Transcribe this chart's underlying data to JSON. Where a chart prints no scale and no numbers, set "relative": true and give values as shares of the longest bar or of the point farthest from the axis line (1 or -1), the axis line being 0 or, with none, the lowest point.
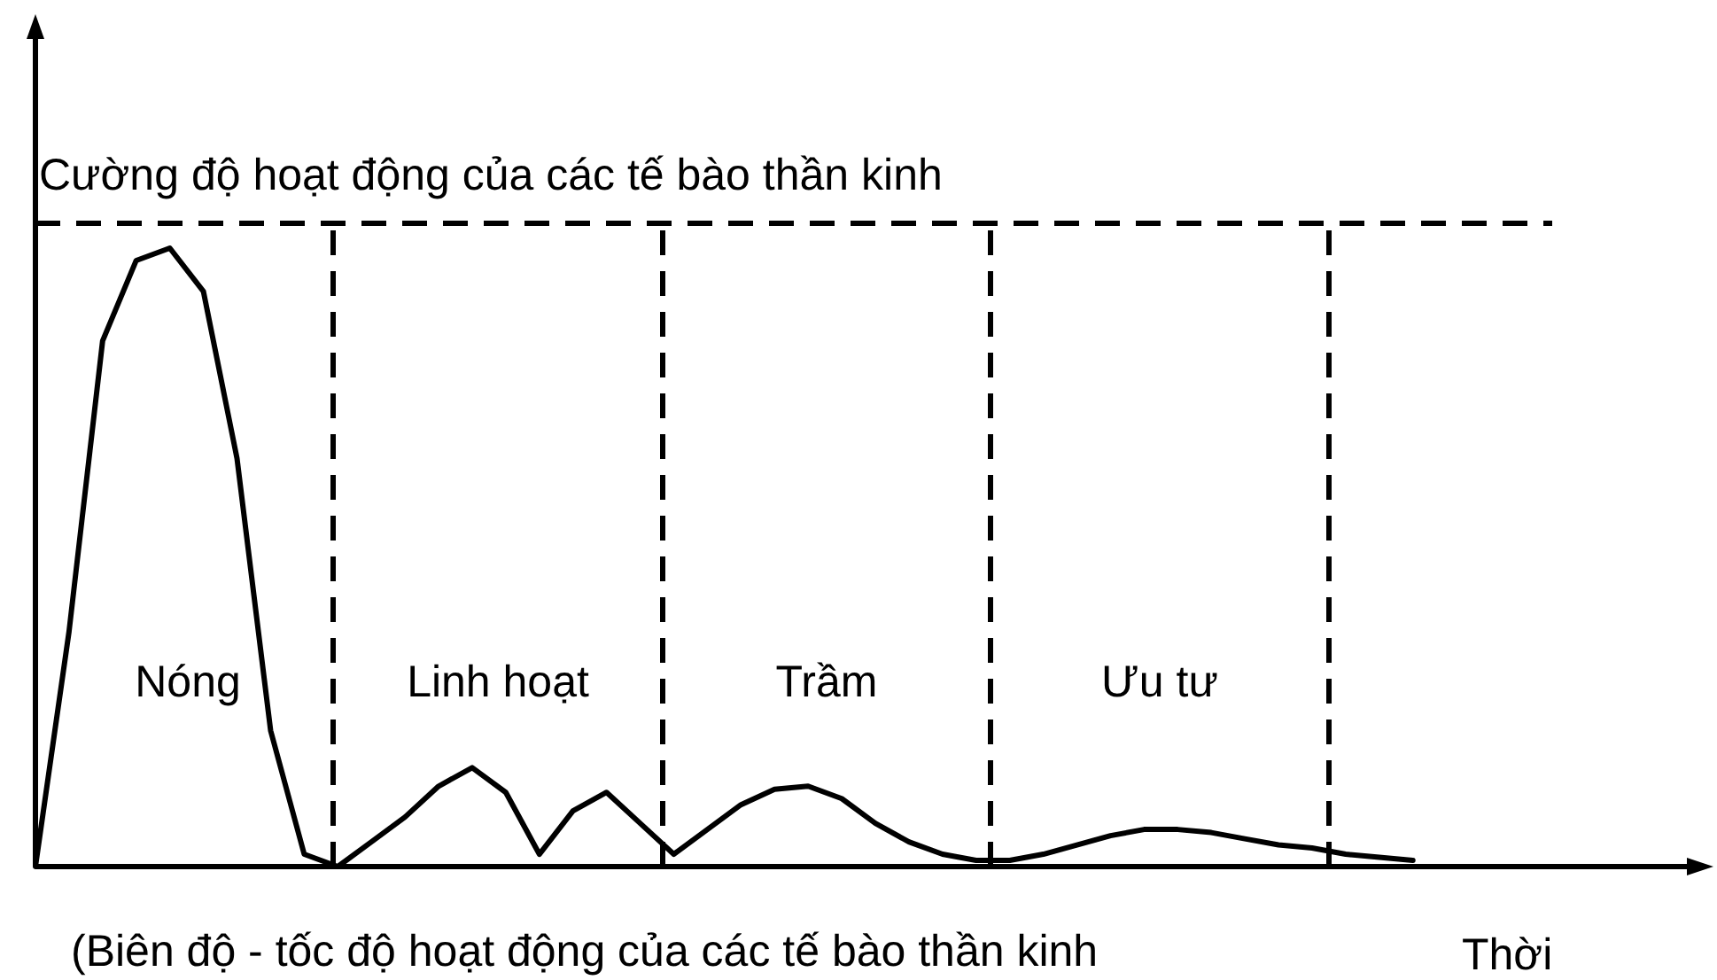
{
  "chart_data": {
    "type": "line",
    "relative": true,
    "ylabel": "Cường độ hoạt động của các tế bào thần kinh",
    "xlabel": "Thời",
    "line_style": "solid",
    "categories": [
      null,
      null,
      null,
      null,
      null,
      null,
      null,
      null,
      null,
      null,
      null,
      null,
      null,
      null,
      null,
      null,
      null,
      null,
      null,
      null,
      null,
      null,
      null,
      null,
      null,
      null,
      null,
      null,
      null,
      null,
      null,
      null,
      null,
      null,
      null,
      null,
      null,
      null,
      null,
      null,
      null,
      null
    ],
    "series": [
      {
        "color": "#000000",
        "values": [
          0,
          0.38,
          0.85,
          0.98,
          1,
          0.93,
          0.66,
          0.22,
          0.02,
          0,
          0.04,
          0.08,
          0.13,
          0.16,
          0.12,
          0.02,
          0.09,
          0.12,
          0.07,
          0.02,
          0.06,
          0.1,
          0.125,
          0.13,
          0.11,
          0.07,
          0.04,
          0.02,
          0.01,
          0.01,
          0.02,
          0.035,
          0.05,
          0.06,
          0.06,
          0.055,
          0.045,
          0.035,
          0.03,
          0.02,
          0.015,
          0.01
        ]
      }
    ],
    "ref_lines": [
      {
        "axis": "y",
        "value": 1.04,
        "line_style": "dashed",
        "color": "#000000"
      }
    ],
    "annotations": [
      "Nóng",
      "Linh hoạt",
      "Trầm",
      "Ưu tư",
      "(Biên độ - tốc độ hoạt động của các tế bào thần kinh"
    ]
  }
}
